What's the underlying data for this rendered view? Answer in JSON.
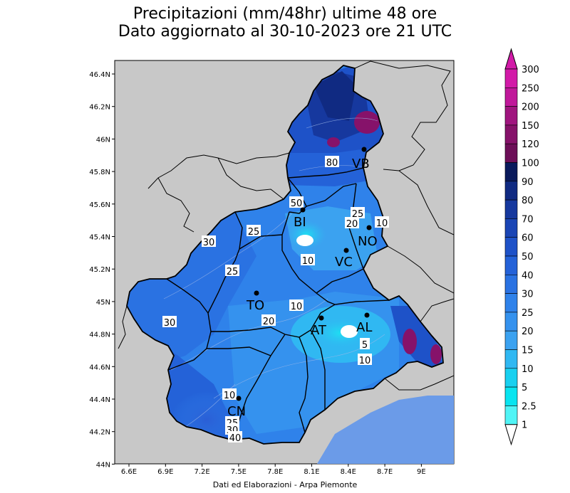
{
  "title": {
    "line1": "Precipitazioni (mm/48hr) ultime 48 ore",
    "line2": "Dato aggiornato al 30-10-2023 ore 21 UTC"
  },
  "lat_ticks": [
    "46.4N",
    "46.2N",
    "46N",
    "45.8N",
    "45.6N",
    "45.4N",
    "45.2N",
    "45N",
    "44.8N",
    "44.6N",
    "44.4N",
    "44.2N",
    "44N"
  ],
  "lon_ticks": [
    "6.6E",
    "6.9E",
    "7.2E",
    "7.5E",
    "7.8E",
    "8.1E",
    "8.4E",
    "8.7E",
    "9E"
  ],
  "colorbar": {
    "labels": [
      "300",
      "250",
      "200",
      "150",
      "120",
      "100",
      "90",
      "80",
      "70",
      "60",
      "50",
      "40",
      "30",
      "25",
      "20",
      "15",
      "10",
      "5",
      "2.5",
      "1"
    ],
    "colors": [
      "#d21aa8",
      "#c0189a",
      "#a0157f",
      "#86126a",
      "#6d0f58",
      "#0a1a5c",
      "#102a82",
      "#16389e",
      "#1a45b5",
      "#1e52c8",
      "#2462d8",
      "#2a72e2",
      "#2f82ea",
      "#3592ee",
      "#3ba2f0",
      "#30b8f2",
      "#18d0f0",
      "#08e4f0",
      "#50f4f6"
    ]
  },
  "cities": [
    {
      "name": "VB"
    },
    {
      "name": "BI"
    },
    {
      "name": "NO"
    },
    {
      "name": "VC"
    },
    {
      "name": "TO"
    },
    {
      "name": "AT"
    },
    {
      "name": "AL"
    },
    {
      "name": "CN"
    }
  ],
  "contour_labels": [
    "80",
    "50",
    "25",
    "10",
    "20",
    "30",
    "25",
    "10",
    "10",
    "20",
    "25",
    "5",
    "10",
    "10",
    "25",
    "30",
    "40",
    "20"
  ],
  "credit": "Dati ed Elaborazioni - Arpa Piemonte",
  "colors": {
    "background_land": "#c8c8c8",
    "border": "#000000"
  }
}
